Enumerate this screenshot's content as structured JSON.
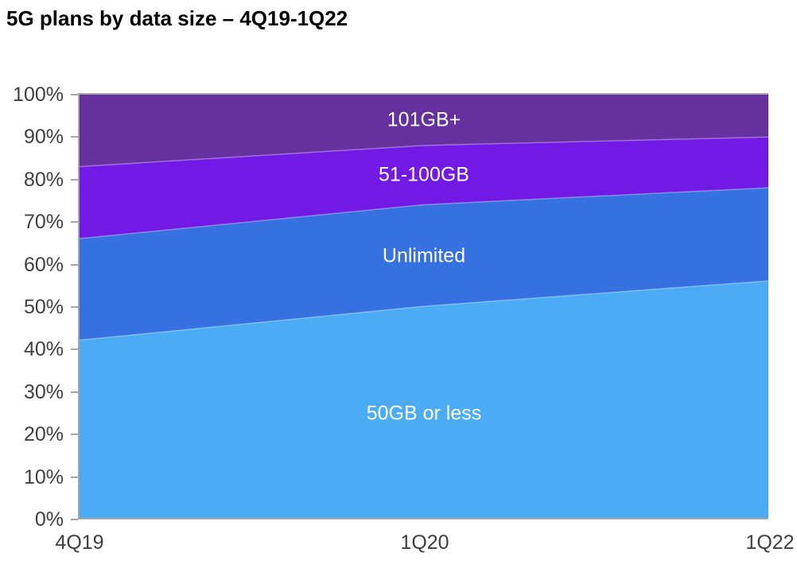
{
  "title": "5G plans by data size – 4Q19-1Q22",
  "chart_data": {
    "type": "area",
    "variant": "stacked-100-percent",
    "title": "5G plans by data size – 4Q19-1Q22",
    "categories": [
      "4Q19",
      "1Q20",
      "1Q22"
    ],
    "series": [
      {
        "name": "50GB or less",
        "values": [
          42,
          50,
          56
        ],
        "color": "#4BACF5"
      },
      {
        "name": "Unlimited",
        "values": [
          24,
          24,
          22
        ],
        "color": "#3571E0"
      },
      {
        "name": "51-100GB",
        "values": [
          17,
          14,
          12
        ],
        "color": "#7219E6"
      },
      {
        "name": "101GB+",
        "values": [
          17,
          12,
          10
        ],
        "color": "#66309E"
      }
    ],
    "ylim": [
      0,
      100
    ],
    "y_tick_labels": [
      "0%",
      "10%",
      "20%",
      "30%",
      "40%",
      "50%",
      "60%",
      "70%",
      "80%",
      "90%",
      "100%"
    ],
    "xlabel": "",
    "ylabel": "",
    "grid": false,
    "legend": "labels-inside-areas",
    "colors": {
      "axis_line": "#a6a6a6",
      "tick_label": "#3f3f3f",
      "title_text": "#000000",
      "area_label_text": "#ffffff"
    }
  }
}
